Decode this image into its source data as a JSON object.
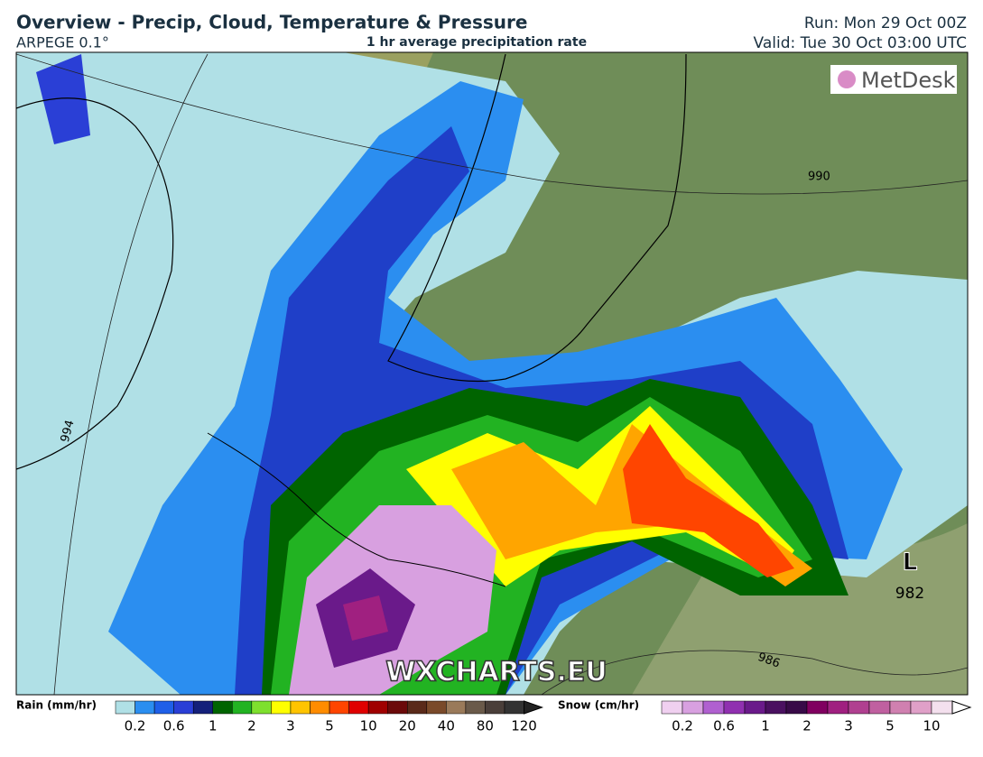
{
  "header": {
    "title": "Overview - Precip, Cloud, Temperature & Pressure",
    "model": "ARPEGE 0.1°",
    "subtitle": "1 hr average precipitation rate",
    "run": "Run: Mon 29 Oct 00Z",
    "valid": "Valid: Tue 30 Oct 03:00 UTC"
  },
  "map": {
    "logo": "MetDesk",
    "watermark": "WXCHARTS.EU",
    "isobars": [
      990,
      994,
      986
    ],
    "low": {
      "symbol": "L",
      "pressure": 982
    }
  },
  "rain_legend": {
    "title": "Rain (mm/hr)",
    "ticks": [
      0.2,
      0.6,
      1,
      2,
      3,
      5,
      10,
      20,
      40,
      80,
      120
    ],
    "colors": [
      "#b0e0e6",
      "#2b8ef0",
      "#1f5fe8",
      "#2a3fd6",
      "#14207a",
      "#006400",
      "#22b322",
      "#7ee02e",
      "#ffff00",
      "#ffc400",
      "#ff8c00",
      "#ff4500",
      "#e00000",
      "#a00000",
      "#6b0a0a",
      "#5a2a1a",
      "#7a4a2a",
      "#9a7a5a",
      "#6a5a4a",
      "#4a3f3a",
      "#333333"
    ]
  },
  "snow_legend": {
    "title": "Snow (cm/hr)",
    "ticks": [
      0.2,
      0.6,
      1,
      2,
      3,
      5,
      10
    ],
    "colors": [
      "#f0d0f0",
      "#d8a0e0",
      "#b060d0",
      "#9030b0",
      "#6a1a8a",
      "#4a1060",
      "#380a48",
      "#800060",
      "#a02080",
      "#b04090",
      "#c060a0",
      "#d080b0",
      "#e0a0c8",
      "#f4e0ee"
    ]
  }
}
